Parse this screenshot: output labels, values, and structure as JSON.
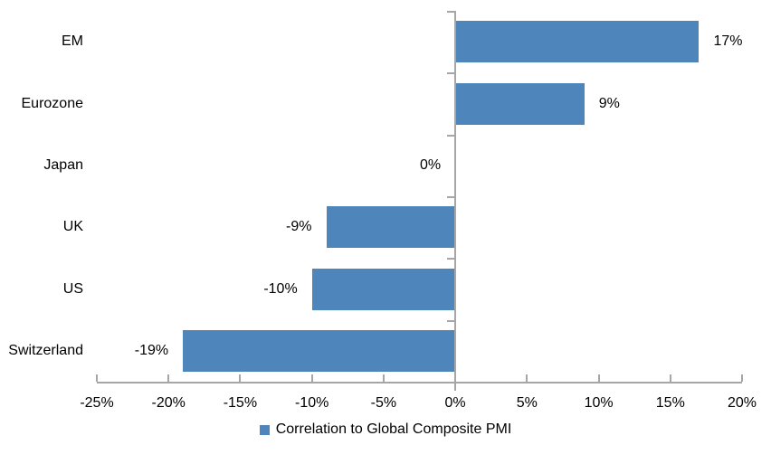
{
  "chart_data": {
    "type": "bar",
    "orientation": "horizontal",
    "title": "",
    "categories": [
      "EM",
      "Eurozone",
      "Japan",
      "UK",
      "US",
      "Switzerland"
    ],
    "values": [
      17,
      9,
      0,
      -9,
      -10,
      -19
    ],
    "unit": "%",
    "data_labels": [
      "17%",
      "9%",
      "0%",
      "-9%",
      "-10%",
      "-19%"
    ],
    "xlim": [
      -25,
      20
    ],
    "x_ticks": [
      -25,
      -20,
      -15,
      -10,
      -5,
      0,
      5,
      10,
      15,
      20
    ],
    "x_tick_labels": [
      "-25%",
      "-20%",
      "-15%",
      "-10%",
      "-5%",
      "0%",
      "5%",
      "10%",
      "15%",
      "20%"
    ],
    "grid": false,
    "legend": {
      "label": "Correlation to Global Composite PMI",
      "position": "bottom"
    },
    "colors": {
      "bar": "#4E86BC",
      "axis": "#A6A6A6",
      "text": "#000000",
      "background": "#FFFFFF"
    }
  }
}
